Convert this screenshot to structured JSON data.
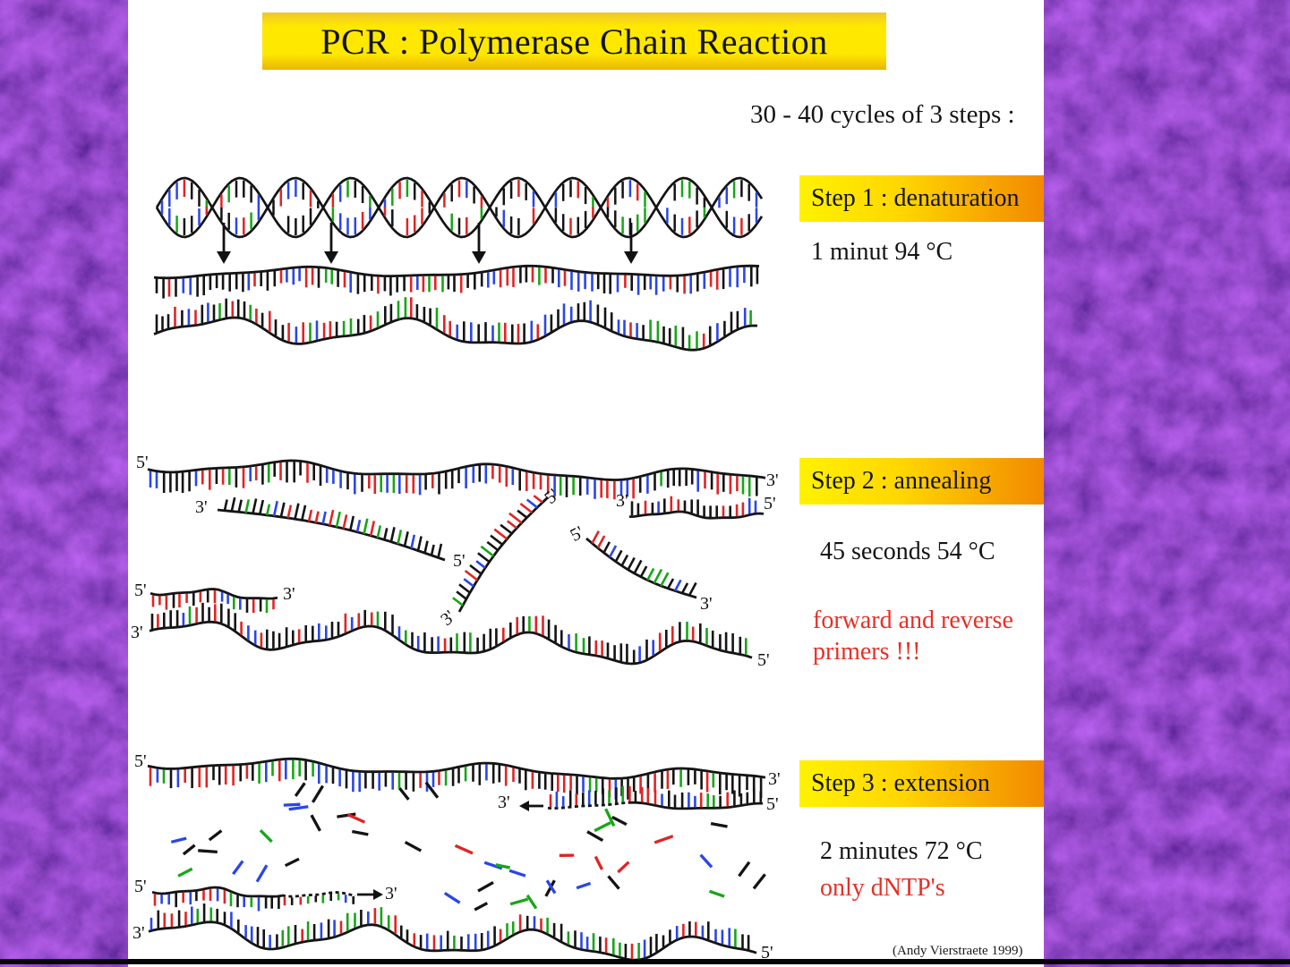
{
  "title": {
    "text": "PCR : Polymerase Chain Reaction"
  },
  "subtitle": "30 - 40 cycles of 3 steps :",
  "steps": [
    {
      "label": "Step 1 : denaturation",
      "condition": "1 minut 94 °C",
      "note": ""
    },
    {
      "label": "Step 2 : annealing",
      "condition": "45 seconds 54 °C",
      "note": "forward and reverse primers !!!"
    },
    {
      "label": "Step 3 : extension",
      "condition": "2 minutes 72 °C",
      "note": "only dNTP's"
    }
  ],
  "attribution": "(Andy Vierstraete 1999)",
  "strand_labels": {
    "five_prime": "5'",
    "three_prime": "3'"
  },
  "colors": {
    "background_purple": "#4a0f8e",
    "panel": "#ffffff",
    "ink": "#141414",
    "note_red": "#e53026",
    "bar_from": "#fff200",
    "bar_mid": "#ffd600",
    "bar_to": "#f28900",
    "title_top": "#f0c62a",
    "title_main": "#ffe800",
    "title_bottom": "#e9b602",
    "bases": [
      "#141414",
      "#2a46e8",
      "#e02424",
      "#17a617"
    ]
  }
}
